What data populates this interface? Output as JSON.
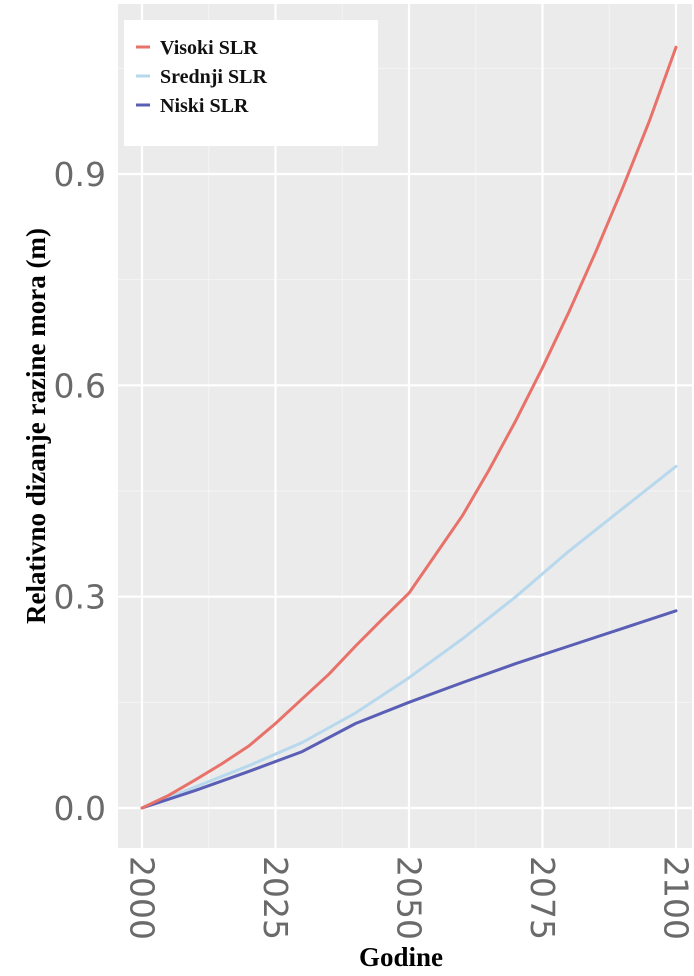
{
  "chart_data": {
    "type": "line",
    "xlabel": "Godine",
    "ylabel": "Relativno dizanje razine mora (m)",
    "xlim": [
      2000,
      2100
    ],
    "ylim": [
      -0.04,
      1.12
    ],
    "x_ticks": [
      2000,
      2025,
      2050,
      2075,
      2100
    ],
    "x_tick_labels": [
      "2000",
      "2025",
      "2050",
      "2075",
      "2100"
    ],
    "y_ticks": [
      0.0,
      0.3,
      0.6,
      0.9
    ],
    "y_tick_labels": [
      "0.0",
      "0.3",
      "0.6",
      "0.9"
    ],
    "grid": true,
    "legend_position": "top-left",
    "background": "#ebebeb",
    "series": [
      {
        "name": "Visoki SLR",
        "color": "#e8726a",
        "x": [
          2000,
          2005,
          2010,
          2015,
          2020,
          2025,
          2030,
          2035,
          2040,
          2045,
          2050,
          2055,
          2060,
          2065,
          2070,
          2075,
          2080,
          2085,
          2090,
          2095,
          2100
        ],
        "y": [
          0.0,
          0.018,
          0.04,
          0.063,
          0.088,
          0.12,
          0.155,
          0.19,
          0.23,
          0.268,
          0.305,
          0.36,
          0.415,
          0.48,
          0.55,
          0.625,
          0.705,
          0.79,
          0.88,
          0.975,
          1.08
        ]
      },
      {
        "name": "Srednji SLR",
        "color": "#b8d8ee",
        "x": [
          2000,
          2010,
          2020,
          2030,
          2040,
          2050,
          2060,
          2070,
          2080,
          2090,
          2100
        ],
        "y": [
          0.0,
          0.03,
          0.06,
          0.093,
          0.135,
          0.185,
          0.24,
          0.3,
          0.365,
          0.425,
          0.485
        ]
      },
      {
        "name": "Niski SLR",
        "color": "#5a5fb5",
        "x": [
          2000,
          2010,
          2020,
          2030,
          2040,
          2050,
          2060,
          2070,
          2080,
          2090,
          2100
        ],
        "y": [
          0.0,
          0.025,
          0.052,
          0.08,
          0.12,
          0.15,
          0.178,
          0.205,
          0.23,
          0.255,
          0.28
        ]
      }
    ]
  }
}
